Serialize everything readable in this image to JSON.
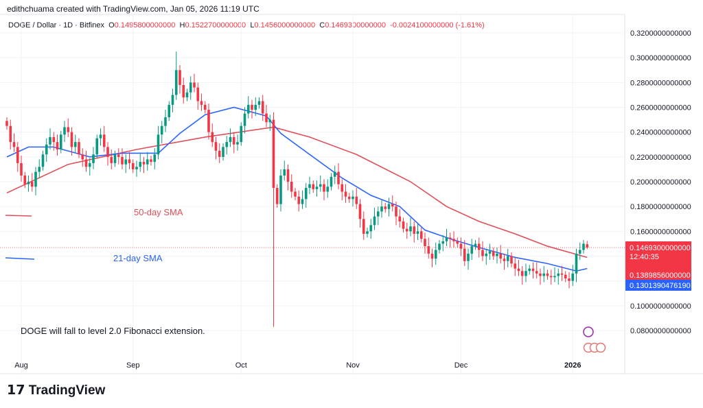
{
  "header": {
    "credit": "edithchuama created with TradingView.com, Jan 05, 2026 11:19 UTC"
  },
  "legend": {
    "symbol": "DOGE / Dollar · 1D · Bitfinex",
    "o_label": "O",
    "o": "0.1495800000000",
    "h_label": "H",
    "h": "0.1522700000000",
    "l_label": "L",
    "l": "0.1456000000000",
    "c_label": "C",
    "c": "0.1469300000000",
    "change": "-0.0024100000000 (-1.61%)"
  },
  "branding": {
    "logo": "TradingView"
  },
  "colors": {
    "up": "#089981",
    "down": "#f23645",
    "sma50": "#e04e57",
    "sma21": "#2962ff",
    "grid": "#f0f3fa"
  },
  "chart_data": {
    "type": "candlestick",
    "start_date": "2025-07-28",
    "closes": [
      0.245,
      0.232,
      0.228,
      0.215,
      0.205,
      0.198,
      0.2,
      0.196,
      0.208,
      0.212,
      0.222,
      0.23,
      0.236,
      0.232,
      0.226,
      0.238,
      0.244,
      0.24,
      0.228,
      0.232,
      0.222,
      0.218,
      0.212,
      0.215,
      0.222,
      0.235,
      0.238,
      0.228,
      0.22,
      0.215,
      0.222,
      0.22,
      0.214,
      0.218,
      0.215,
      0.21,
      0.212,
      0.216,
      0.214,
      0.218,
      0.216,
      0.222,
      0.238,
      0.245,
      0.252,
      0.262,
      0.27,
      0.29,
      0.278,
      0.268,
      0.272,
      0.28,
      0.276,
      0.265,
      0.262,
      0.258,
      0.24,
      0.232,
      0.225,
      0.22,
      0.228,
      0.232,
      0.236,
      0.23,
      0.232,
      0.245,
      0.255,
      0.262,
      0.258,
      0.262,
      0.265,
      0.255,
      0.248,
      0.25,
      0.195,
      0.182,
      0.205,
      0.21,
      0.2,
      0.192,
      0.188,
      0.182,
      0.186,
      0.195,
      0.198,
      0.194,
      0.196,
      0.198,
      0.192,
      0.196,
      0.204,
      0.208,
      0.198,
      0.192,
      0.188,
      0.186,
      0.188,
      0.182,
      0.17,
      0.158,
      0.16,
      0.165,
      0.172,
      0.176,
      0.18,
      0.178,
      0.182,
      0.18,
      0.172,
      0.168,
      0.162,
      0.16,
      0.164,
      0.158,
      0.16,
      0.154,
      0.148,
      0.142,
      0.138,
      0.145,
      0.15,
      0.152,
      0.155,
      0.154,
      0.152,
      0.15,
      0.146,
      0.136,
      0.142,
      0.148,
      0.15,
      0.145,
      0.14,
      0.142,
      0.144,
      0.14,
      0.142,
      0.138,
      0.136,
      0.14,
      0.134,
      0.13,
      0.128,
      0.124,
      0.128,
      0.13,
      0.128,
      0.126,
      0.124,
      0.126,
      0.124,
      0.123,
      0.124,
      0.126,
      0.125,
      0.122,
      0.12,
      0.126,
      0.142,
      0.145,
      0.15,
      0.14693
    ],
    "extremes": [
      {
        "date": "2025-09-13",
        "high": 0.305
      },
      {
        "date": "2025-10-10",
        "low": 0.083
      },
      {
        "date": "2026-01-05",
        "high": 0.15227,
        "low": 0.1456,
        "open": 0.14958
      }
    ],
    "sma50": {
      "name": "50-day SMA",
      "points": [
        [
          "2025-07-28",
          0.191
        ],
        [
          "2025-08-14",
          0.214
        ],
        [
          "2025-09-02",
          0.226
        ],
        [
          "2025-09-21",
          0.236
        ],
        [
          "2025-10-10",
          0.244
        ],
        [
          "2025-10-20",
          0.236
        ],
        [
          "2025-11-02",
          0.222
        ],
        [
          "2025-11-17",
          0.2
        ],
        [
          "2025-11-27",
          0.18
        ],
        [
          "2025-12-06",
          0.168
        ],
        [
          "2025-12-16",
          0.158
        ],
        [
          "2025-12-25",
          0.148
        ],
        [
          "2026-01-05",
          0.139
        ]
      ]
    },
    "sma21": {
      "name": "21-day SMA",
      "points": [
        [
          "2025-07-28",
          0.22
        ],
        [
          "2025-08-03",
          0.228
        ],
        [
          "2025-08-10",
          0.228
        ],
        [
          "2025-08-20",
          0.22
        ],
        [
          "2025-08-29",
          0.223
        ],
        [
          "2025-09-08",
          0.223
        ],
        [
          "2025-09-14",
          0.239
        ],
        [
          "2025-09-21",
          0.254
        ],
        [
          "2025-09-29",
          0.26
        ],
        [
          "2025-10-08",
          0.253
        ],
        [
          "2025-10-12",
          0.239
        ],
        [
          "2025-10-20",
          0.222
        ],
        [
          "2025-10-29",
          0.203
        ],
        [
          "2025-11-06",
          0.189
        ],
        [
          "2025-11-14",
          0.18
        ],
        [
          "2025-11-21",
          0.161
        ],
        [
          "2025-11-29",
          0.153
        ],
        [
          "2025-12-06",
          0.147
        ],
        [
          "2025-12-16",
          0.139
        ],
        [
          "2025-12-25",
          0.134
        ],
        [
          "2026-01-02",
          0.128
        ],
        [
          "2026-01-05",
          0.13
        ]
      ]
    },
    "ylim": [
      0.07,
      0.33
    ],
    "y_ticks": [
      "0.3200000000000",
      "0.3000000000000",
      "0.2800000000000",
      "0.2600000000000",
      "0.2400000000000",
      "0.2200000000000",
      "0.2000000000000",
      "0.1800000000000",
      "0.1600000000000",
      "0.1000000000000",
      "0.0800000000000"
    ],
    "y_tick_values": [
      0.32,
      0.3,
      0.28,
      0.26,
      0.24,
      0.22,
      0.2,
      0.18,
      0.16,
      0.1,
      0.08
    ],
    "x_ticks": [
      {
        "label": "Aug",
        "date": "2025-08-01"
      },
      {
        "label": "Sep",
        "date": "2025-09-01"
      },
      {
        "label": "Oct",
        "date": "2025-10-01"
      },
      {
        "label": "Nov",
        "date": "2025-11-01"
      },
      {
        "label": "Dec",
        "date": "2025-12-01"
      },
      {
        "label": "2026",
        "date": "2026-01-01"
      }
    ],
    "price_labels": {
      "last": "0.1469300000000",
      "countdown": "12:40:35",
      "sma50": "0.1389856000000",
      "sma21": "0.1301390476190"
    },
    "annotations": {
      "sma50": "50-day SMA",
      "sma21": "21-day SMA",
      "note": "DOGE  will fall to level 2.0 Fibonacci extension."
    },
    "grid": true
  }
}
